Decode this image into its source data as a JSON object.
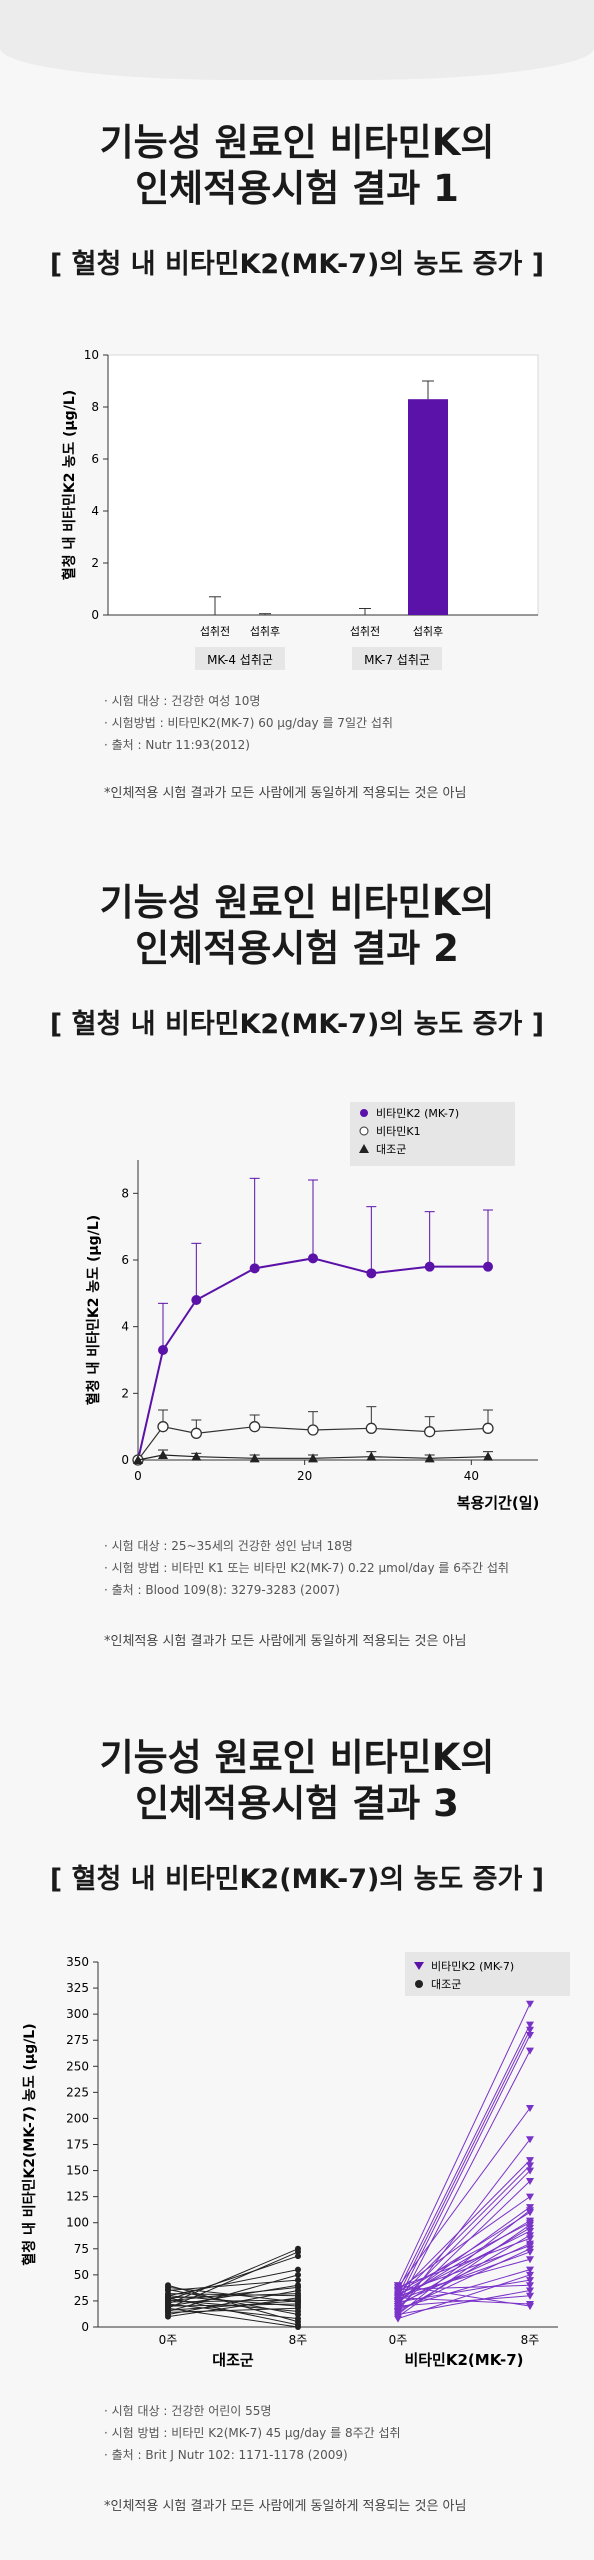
{
  "sections": [
    {
      "title1": "기능성 원료인 비타민K의",
      "title2": "인체적용시험 결과 1",
      "subtitle": "[ 혈청 내 비타민K2(MK-7)의 농도 증가 ]",
      "notes": [
        "· 시험 대상 : 건강한 여성 10명",
        "· 시험방법 : 비타민K2(MK-7) 60 µg/day 를 7일간 섭취",
        "· 출처 : Nutr 11:93(2012)"
      ],
      "disclaimer": "*인체적용 시험 결과가 모든 사람에게 동일하게 적용되는 것은 아님"
    },
    {
      "title1": "기능성 원료인 비타민K의",
      "title2": "인체적용시험 결과 2",
      "subtitle": "[ 혈청 내 비타민K2(MK-7)의 농도 증가 ]",
      "notes": [
        "· 시험 대상 : 25~35세의 건강한 성인 남녀 18명",
        "· 시험 방법 : 비타민 K1 또는 비타민 K2(MK-7) 0.22 µmol/day 를 6주간 섭취",
        "· 출처 : Blood 109(8): 3279-3283 (2007)"
      ],
      "disclaimer": "*인체적용 시험 결과가 모든 사람에게 동일하게 적용되는 것은 아님"
    },
    {
      "title1": "기능성 원료인 비타민K의",
      "title2": "인체적용시험 결과 3",
      "subtitle": "[ 혈청 내 비타민K2(MK-7)의 농도 증가 ]",
      "notes": [
        "· 시험 대상 : 건강한 어린이 55명",
        "· 시험 방법 : 비타민 K2(MK-7) 45 µg/day 를 8주간 섭취",
        "· 출처 : Brit J Nutr 102: 1171-1178 (2009)"
      ],
      "disclaimer": "*인체적용 시험 결과가 모든 사람에게 동일하게 적용되는 것은 아님"
    }
  ],
  "colors": {
    "purple": "#5b12a8",
    "purple_light": "#7a33c8",
    "dark": "#222222",
    "legend_bg": "#e6e6e6"
  },
  "chart_data": [
    {
      "type": "bar",
      "ylabel": "혈청 내 비타민K2 농도 (µg/L)",
      "ylim": [
        0,
        10
      ],
      "yticks": [
        0,
        2,
        4,
        6,
        8,
        10
      ],
      "categories": [
        "섭취전",
        "섭취후",
        "섭취전",
        "섭취후"
      ],
      "groups": [
        "MK-4 섭취군",
        "MK-7 섭취군"
      ],
      "values": [
        0,
        0,
        0,
        8.3
      ],
      "errors": [
        0.7,
        0.05,
        0.25,
        0.7
      ]
    },
    {
      "type": "line",
      "ylabel": "혈청 내 비타민K2 농도 (µg/L)",
      "xlabel": "복용기간(일)",
      "xlim": [
        0,
        48
      ],
      "ylim": [
        0,
        9
      ],
      "xticks": [
        0,
        20,
        40
      ],
      "yticks": [
        0,
        2,
        4,
        6,
        8
      ],
      "legend": "top-right",
      "series": [
        {
          "name": "비타민K2 (MK-7)",
          "marker": "filled-circle",
          "x": [
            0,
            3,
            7,
            14,
            21,
            28,
            35,
            42
          ],
          "y": [
            0,
            3.3,
            4.8,
            5.75,
            6.05,
            5.6,
            5.8,
            5.8
          ],
          "err": [
            0,
            1.4,
            1.7,
            2.7,
            2.35,
            2.0,
            1.65,
            1.7
          ]
        },
        {
          "name": "비타민K1",
          "marker": "open-circle",
          "x": [
            0,
            3,
            7,
            14,
            21,
            28,
            35,
            42
          ],
          "y": [
            0,
            1.0,
            0.8,
            1.0,
            0.9,
            0.95,
            0.85,
            0.95
          ],
          "err": [
            0,
            0.5,
            0.4,
            0.35,
            0.55,
            0.65,
            0.45,
            0.55
          ]
        },
        {
          "name": "대조군",
          "marker": "filled-triangle",
          "x": [
            0,
            3,
            7,
            14,
            21,
            28,
            35,
            42
          ],
          "y": [
            0,
            0.15,
            0.1,
            0.05,
            0.05,
            0.1,
            0.05,
            0.1
          ],
          "err": [
            0,
            0.15,
            0.1,
            0.1,
            0.1,
            0.15,
            0.1,
            0.15
          ]
        }
      ]
    },
    {
      "type": "line",
      "ylabel": "혈청 내 비타민K2(MK-7) 농도 (µg/L)",
      "ylim": [
        0,
        350
      ],
      "yticks": [
        0,
        25,
        50,
        75,
        100,
        125,
        150,
        175,
        200,
        225,
        250,
        275,
        300,
        325,
        350
      ],
      "groups": [
        "대조군",
        "비타민K2(MK-7)"
      ],
      "xticks": [
        "0주",
        "8주"
      ],
      "legend": "top-right",
      "series": [
        {
          "name": "비타민K2 (MK-7)",
          "marker": "filled-triangle",
          "pairs": [
            [
              40,
              310
            ],
            [
              35,
              290
            ],
            [
              30,
              285
            ],
            [
              25,
              280
            ],
            [
              20,
              265
            ],
            [
              38,
              210
            ],
            [
              15,
              180
            ],
            [
              32,
              160
            ],
            [
              28,
              155
            ],
            [
              22,
              150
            ],
            [
              18,
              140
            ],
            [
              36,
              125
            ],
            [
              24,
              115
            ],
            [
              12,
              112
            ],
            [
              30,
              110
            ],
            [
              26,
              102
            ],
            [
              34,
              100
            ],
            [
              10,
              98
            ],
            [
              20,
              95
            ],
            [
              28,
              92
            ],
            [
              14,
              88
            ],
            [
              38,
              85
            ],
            [
              22,
              80
            ],
            [
              32,
              78
            ],
            [
              16,
              75
            ],
            [
              26,
              72
            ],
            [
              30,
              65
            ],
            [
              18,
              55
            ],
            [
              8,
              50
            ],
            [
              24,
              45
            ],
            [
              36,
              40
            ],
            [
              12,
              35
            ],
            [
              20,
              30
            ],
            [
              28,
              22
            ],
            [
              40,
              20
            ]
          ]
        },
        {
          "name": "대조군",
          "marker": "filled-circle",
          "pairs": [
            [
              22,
              75
            ],
            [
              18,
              72
            ],
            [
              26,
              68
            ],
            [
              30,
              55
            ],
            [
              15,
              50
            ],
            [
              35,
              45
            ],
            [
              20,
              40
            ],
            [
              25,
              38
            ],
            [
              12,
              35
            ],
            [
              28,
              32
            ],
            [
              32,
              30
            ],
            [
              10,
              28
            ],
            [
              24,
              26
            ],
            [
              16,
              25
            ],
            [
              38,
              24
            ],
            [
              20,
              22
            ],
            [
              30,
              20
            ],
            [
              14,
              18
            ],
            [
              26,
              15
            ],
            [
              36,
              12
            ],
            [
              22,
              8
            ],
            [
              40,
              5
            ],
            [
              28,
              2
            ],
            [
              18,
              0
            ]
          ]
        }
      ]
    }
  ]
}
